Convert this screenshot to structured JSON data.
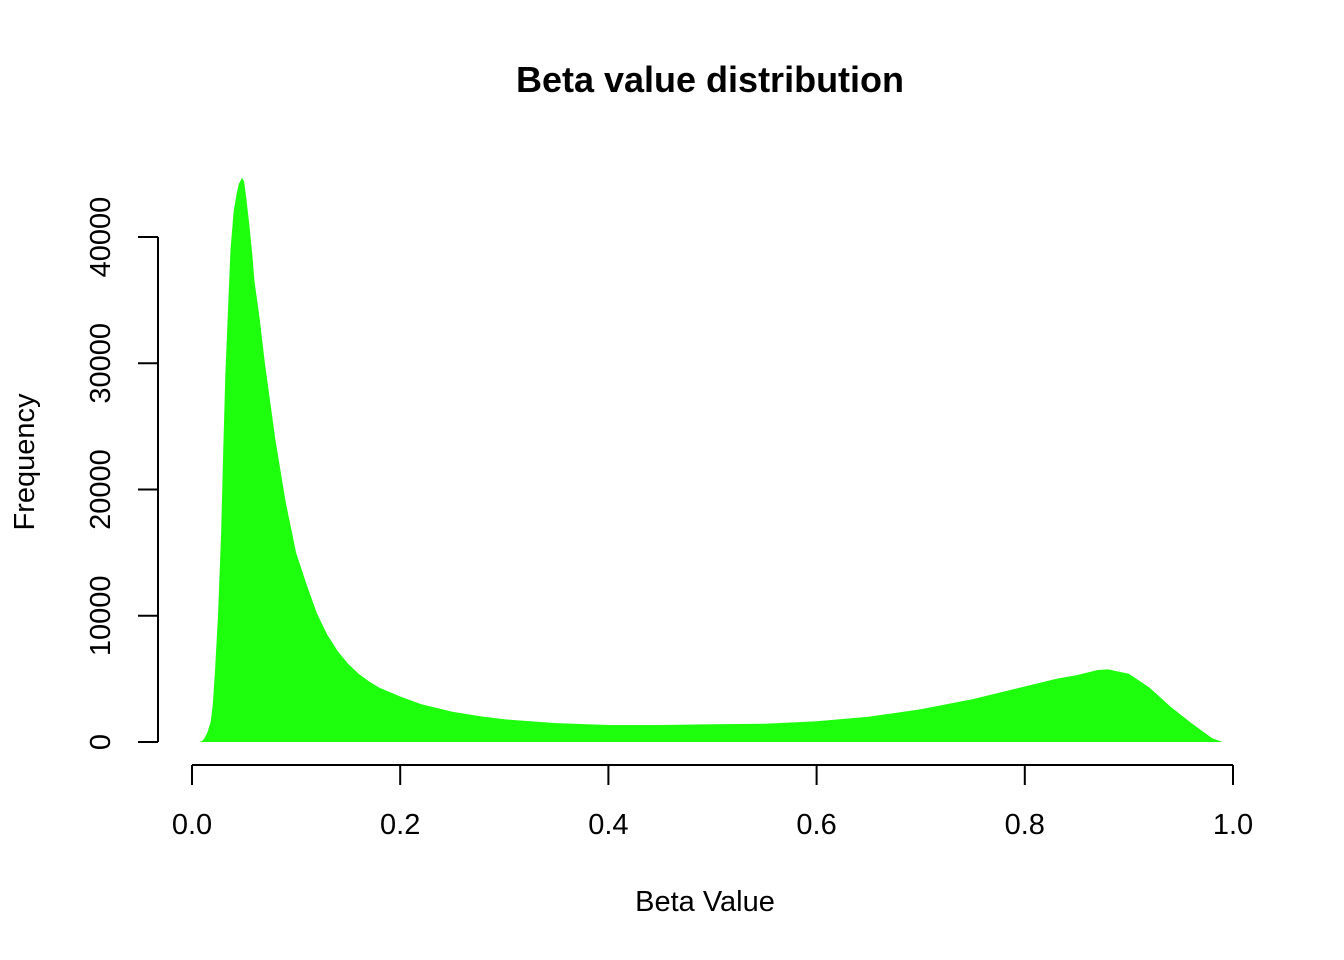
{
  "chart_data": {
    "type": "area",
    "title": "Beta value distribution",
    "xlabel": "Beta Value",
    "ylabel": "Frequency",
    "xlim": [
      0,
      1
    ],
    "ylim": [
      0,
      45000
    ],
    "xticks": [
      "0.0",
      "0.2",
      "0.4",
      "0.6",
      "0.8",
      "1.0"
    ],
    "yticks": [
      "0",
      "10000",
      "20000",
      "30000",
      "40000"
    ],
    "grid": false,
    "color": "#1EFF0E",
    "x": [
      0.007,
      0.01,
      0.012,
      0.015,
      0.018,
      0.02,
      0.022,
      0.025,
      0.028,
      0.03,
      0.032,
      0.035,
      0.037,
      0.04,
      0.043,
      0.045,
      0.048,
      0.05,
      0.052,
      0.055,
      0.058,
      0.06,
      0.065,
      0.07,
      0.075,
      0.08,
      0.085,
      0.09,
      0.095,
      0.1,
      0.11,
      0.12,
      0.13,
      0.14,
      0.15,
      0.16,
      0.17,
      0.18,
      0.2,
      0.22,
      0.25,
      0.28,
      0.3,
      0.35,
      0.4,
      0.45,
      0.5,
      0.55,
      0.6,
      0.65,
      0.7,
      0.75,
      0.8,
      0.83,
      0.85,
      0.87,
      0.88,
      0.9,
      0.92,
      0.94,
      0.96,
      0.98,
      0.99
    ],
    "y": [
      0,
      100,
      300,
      800,
      1600,
      3000,
      5500,
      10000,
      16500,
      23000,
      29000,
      35000,
      39000,
      42000,
      43500,
      44200,
      44700,
      44400,
      43200,
      41000,
      38500,
      36500,
      33500,
      30000,
      27000,
      24000,
      21500,
      19000,
      17000,
      15000,
      12500,
      10200,
      8500,
      7200,
      6200,
      5400,
      4800,
      4300,
      3600,
      3000,
      2400,
      2000,
      1800,
      1500,
      1350,
      1350,
      1400,
      1450,
      1650,
      2000,
      2600,
      3400,
      4400,
      5000,
      5300,
      5700,
      5750,
      5400,
      4300,
      2800,
      1500,
      300,
      0
    ]
  }
}
